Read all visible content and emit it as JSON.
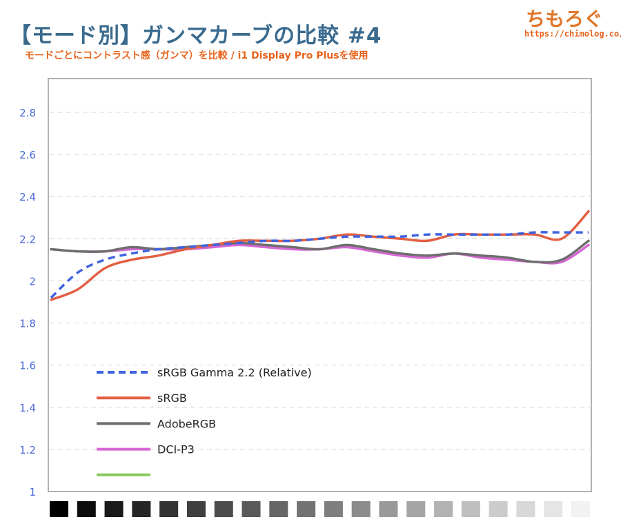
{
  "header": {
    "title": "【モード別】ガンマカーブの比較 #4",
    "subtitle": "モードごとにコントラスト感（ガンマ）を比較 / i1 Display Pro Plusを使用",
    "brand": "ちもろぐ",
    "brand_url": "https://chimolog.co/"
  },
  "chart_data": {
    "type": "line",
    "title": "【モード別】ガンマカーブの比較 #4",
    "subtitle": "モードごとにコントラスト感（ガンマ）を比較 / i1 Display Pro Plusを使用",
    "ylim": [
      1,
      2.96
    ],
    "yticks": [
      1,
      1.2,
      1.4,
      1.6,
      1.8,
      2,
      2.2,
      2.4,
      2.6,
      2.8
    ],
    "ytick_labels": [
      "1",
      "1.2",
      "1.4",
      "1.6",
      "1.8",
      "2",
      "2.2",
      "2.4",
      "2.6",
      "2.8"
    ],
    "grid": true,
    "legend_position": "bottom-left",
    "x": [
      0,
      5,
      10,
      15,
      20,
      25,
      30,
      35,
      40,
      45,
      50,
      55,
      60,
      65,
      70,
      75,
      80,
      85,
      90,
      95,
      100
    ],
    "x_axis_swatches": [
      "#000000",
      "#0d0d0d",
      "#1a1a1a",
      "#262626",
      "#333333",
      "#3f3f3f",
      "#4c4c4c",
      "#595959",
      "#666666",
      "#727272",
      "#7f7f7f",
      "#8c8c8c",
      "#999999",
      "#a5a5a5",
      "#b2b2b2",
      "#bfbfbf",
      "#cccccc",
      "#d8d8d8",
      "#e5e5e5",
      "#f2f2f2"
    ],
    "series": [
      {
        "name": "sRGB Gamma 2.2 (Relative)",
        "color": "#3f63e0",
        "dashed": true,
        "values": [
          1.92,
          2.04,
          2.1,
          2.13,
          2.15,
          2.16,
          2.17,
          2.18,
          2.19,
          2.19,
          2.2,
          2.21,
          2.21,
          2.21,
          2.22,
          2.22,
          2.22,
          2.22,
          2.23,
          2.23,
          2.23
        ]
      },
      {
        "name": "sRGB",
        "color": "#e35f43",
        "dashed": false,
        "values": [
          1.91,
          1.96,
          2.06,
          2.1,
          2.12,
          2.15,
          2.17,
          2.19,
          2.19,
          2.19,
          2.2,
          2.22,
          2.21,
          2.2,
          2.19,
          2.22,
          2.22,
          2.22,
          2.22,
          2.2,
          2.33
        ]
      },
      {
        "name": "AdobeRGB",
        "color": "#6e6e6e",
        "dashed": false,
        "values": [
          2.15,
          2.14,
          2.14,
          2.16,
          2.15,
          2.16,
          2.17,
          2.18,
          2.17,
          2.16,
          2.15,
          2.17,
          2.15,
          2.13,
          2.12,
          2.13,
          2.12,
          2.11,
          2.09,
          2.1,
          2.19
        ]
      },
      {
        "name": "DCI-P3",
        "color": "#d568d3",
        "dashed": false,
        "values": [
          2.15,
          2.14,
          2.14,
          2.15,
          2.15,
          2.15,
          2.16,
          2.17,
          2.16,
          2.15,
          2.15,
          2.16,
          2.14,
          2.12,
          2.11,
          2.13,
          2.11,
          2.1,
          2.09,
          2.09,
          2.17
        ]
      }
    ],
    "extra_legend_entry": {
      "name": "",
      "color": "#86c95a"
    }
  }
}
